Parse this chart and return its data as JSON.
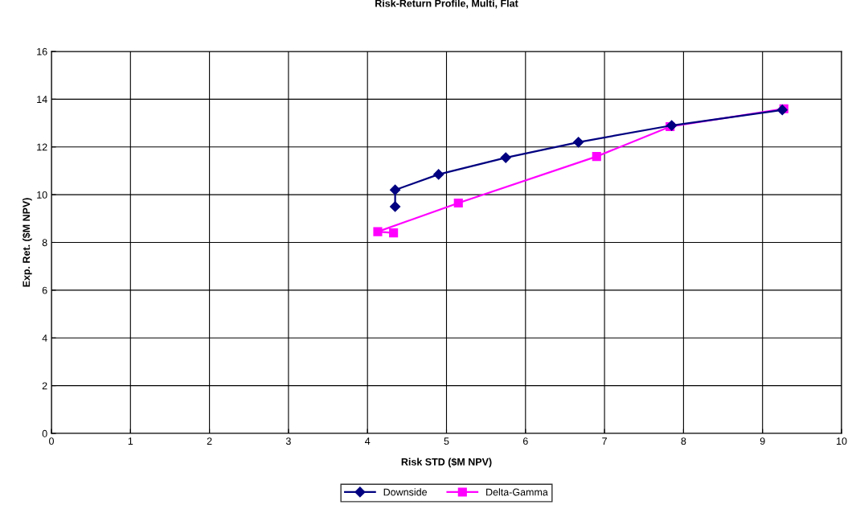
{
  "chart_data": {
    "type": "line",
    "title": "Risk-Return Profile, Multi, Flat",
    "xlabel": "Risk STD ($M NPV)",
    "ylabel": "Exp. Ret. ($M NPV)",
    "xlim": [
      0,
      10
    ],
    "xticks": [
      0,
      1,
      2,
      3,
      4,
      5,
      6,
      7,
      8,
      9,
      10
    ],
    "ylim": [
      0,
      16
    ],
    "yticks": [
      0,
      2,
      4,
      6,
      8,
      10,
      12,
      14,
      16
    ],
    "grid": true,
    "legend": "bottom",
    "series": [
      {
        "name": "Downside",
        "color": "#000080",
        "marker": "diamond",
        "x": [
          4.35,
          4.35,
          4.9,
          5.75,
          6.67,
          7.85,
          9.25
        ],
        "values": [
          9.5,
          10.2,
          10.85,
          11.55,
          12.2,
          12.9,
          13.55
        ]
      },
      {
        "name": "Delta-Gamma",
        "color": "#ff00ff",
        "marker": "square",
        "x": [
          4.33,
          4.13,
          5.15,
          6.9,
          7.83,
          9.27
        ],
        "values": [
          8.4,
          8.45,
          9.65,
          11.6,
          12.85,
          13.6
        ]
      }
    ]
  }
}
